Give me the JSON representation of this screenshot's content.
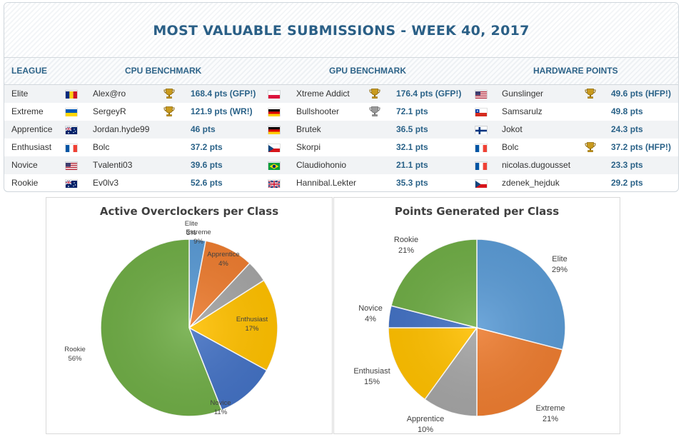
{
  "header": {
    "title": "MOST VALUABLE SUBMISSIONS - WEEK 40, 2017"
  },
  "columns": {
    "league": "LEAGUE",
    "cpu": "CPU BENCHMARK",
    "gpu": "GPU BENCHMARK",
    "hw": "HARDWARE POINTS"
  },
  "rows": [
    {
      "league": "Elite",
      "cpu": {
        "flag": "romania",
        "name": "Alex@ro",
        "trophy": "gold",
        "pts": "168.4 pts (GFP!)"
      },
      "gpu": {
        "flag": "poland",
        "name": "Xtreme Addict",
        "trophy": "gold",
        "pts": "176.4 pts (GFP!)"
      },
      "hw": {
        "flag": "usa",
        "name": "Gunslinger",
        "trophy": "gold",
        "pts": "49.6 pts (HFP!)"
      }
    },
    {
      "league": "Extreme",
      "cpu": {
        "flag": "ukraine",
        "name": "SergeyR",
        "trophy": "gold",
        "pts": "121.9 pts (WR!)"
      },
      "gpu": {
        "flag": "germany",
        "name": "Bullshooter",
        "trophy": "silver",
        "pts": "72.1 pts"
      },
      "hw": {
        "flag": "chile",
        "name": "Samsarulz",
        "trophy": "",
        "pts": "49.8 pts"
      }
    },
    {
      "league": "Apprentice",
      "cpu": {
        "flag": "australia",
        "name": "Jordan.hyde99",
        "trophy": "",
        "pts": "46 pts"
      },
      "gpu": {
        "flag": "germany",
        "name": "Brutek",
        "trophy": "",
        "pts": "36.5 pts"
      },
      "hw": {
        "flag": "finland",
        "name": "Jokot",
        "trophy": "",
        "pts": "24.3 pts"
      }
    },
    {
      "league": "Enthusiast",
      "cpu": {
        "flag": "france",
        "name": "Bolc",
        "trophy": "",
        "pts": "37.2 pts"
      },
      "gpu": {
        "flag": "czech",
        "name": "Skorpi",
        "trophy": "",
        "pts": "32.1 pts"
      },
      "hw": {
        "flag": "france",
        "name": "Bolc",
        "trophy": "gold",
        "pts": "37.2 pts (HFP!)"
      }
    },
    {
      "league": "Novice",
      "cpu": {
        "flag": "usa",
        "name": "Tvalenti03",
        "trophy": "",
        "pts": "39.6 pts"
      },
      "gpu": {
        "flag": "brazil",
        "name": "Claudiohonio",
        "trophy": "",
        "pts": "21.1 pts"
      },
      "hw": {
        "flag": "france",
        "name": "nicolas.dugousset",
        "trophy": "",
        "pts": "23.3 pts"
      }
    },
    {
      "league": "Rookie",
      "cpu": {
        "flag": "australia",
        "name": "Ev0lv3",
        "trophy": "",
        "pts": "52.6 pts"
      },
      "gpu": {
        "flag": "uk",
        "name": "Hannibal.Lekter",
        "trophy": "",
        "pts": "35.3 pts"
      },
      "hw": {
        "flag": "czech",
        "name": "zdenek_hejduk",
        "trophy": "",
        "pts": "29.2 pts"
      }
    }
  ],
  "chart_data": [
    {
      "type": "pie",
      "title": "Active Overclockers per Class",
      "categories": [
        "Elite",
        "Extreme",
        "Apprentice",
        "Enthusiast",
        "Novice",
        "Rookie"
      ],
      "values": [
        3,
        9,
        4,
        17,
        11,
        56
      ],
      "labels": [
        "3%",
        "9%",
        "4%",
        "17%",
        "11%",
        "56%"
      ],
      "colors": [
        "#5b9bd5",
        "#ed7d31",
        "#a5a5a5",
        "#ffc000",
        "#4472c4",
        "#70ad47"
      ]
    },
    {
      "type": "pie",
      "title": "Points Generated per Class",
      "categories": [
        "Elite",
        "Extreme",
        "Apprentice",
        "Enthusiast",
        "Novice",
        "Rookie"
      ],
      "values": [
        29,
        21,
        10,
        15,
        4,
        21
      ],
      "labels": [
        "29%",
        "21%",
        "10%",
        "15%",
        "4%",
        "21%"
      ],
      "colors": [
        "#5b9bd5",
        "#ed7d31",
        "#a5a5a5",
        "#ffc000",
        "#4472c4",
        "#70ad47"
      ]
    }
  ]
}
